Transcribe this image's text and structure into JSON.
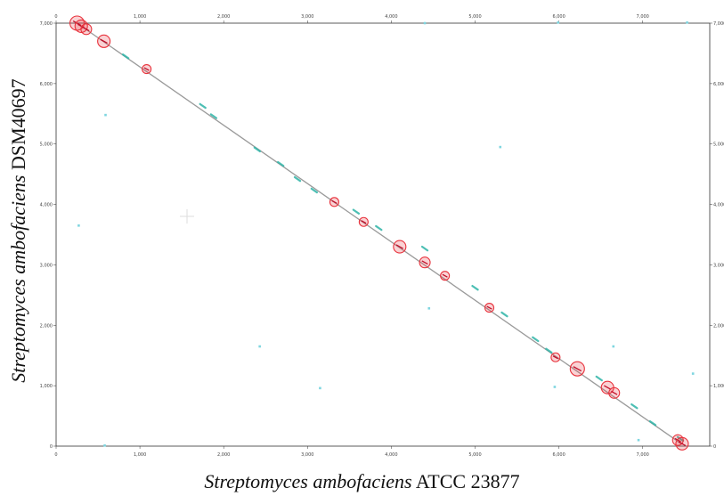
{
  "chart_data": {
    "type": "scatter",
    "xlabel": {
      "species": "Streptomyces ambofaciens",
      "strain": "ATCC 23877"
    },
    "ylabel": {
      "species": "Streptomyces ambofaciens",
      "strain": "DSM40697"
    },
    "xlim": [
      0,
      7800
    ],
    "ylim": [
      0,
      7000
    ],
    "x_ticks": [
      "0",
      "1,000",
      "2,000",
      "3,000",
      "4,000",
      "5,000",
      "6,000",
      "7,000"
    ],
    "y_ticks": [
      "0",
      "1,000",
      "2,000",
      "3,000",
      "4,000",
      "5,000",
      "6,000",
      "7,000"
    ],
    "grid": false,
    "diagonal": {
      "x": [
        250,
        7470
      ],
      "y": [
        7000,
        30
      ]
    },
    "series": [
      {
        "kind": "match_segments",
        "color": "#2fb5a8",
        "points": [
          [
            830,
            6450
          ],
          [
            1750,
            5630
          ],
          [
            1880,
            5460
          ],
          [
            2400,
            4910
          ],
          [
            2680,
            4670
          ],
          [
            2880,
            4420
          ],
          [
            3080,
            4230
          ],
          [
            3580,
            3880
          ],
          [
            3850,
            3610
          ],
          [
            4400,
            3270
          ],
          [
            5000,
            2620
          ],
          [
            5350,
            2180
          ],
          [
            5720,
            1770
          ],
          [
            5880,
            1580
          ],
          [
            6480,
            1120
          ],
          [
            6900,
            660
          ],
          [
            7120,
            380
          ],
          [
            7450,
            120
          ]
        ]
      },
      {
        "kind": "isolated_matches",
        "color": "#7fd6e0",
        "points": [
          [
            590,
            5480
          ],
          [
            270,
            3650
          ],
          [
            2430,
            1650
          ],
          [
            3150,
            960
          ],
          [
            4450,
            2280
          ],
          [
            5300,
            4950
          ],
          [
            4400,
            7000
          ],
          [
            5950,
            980
          ],
          [
            6650,
            1650
          ],
          [
            6950,
            100
          ],
          [
            7600,
            1200
          ],
          [
            7530,
            7010
          ],
          [
            580,
            10
          ],
          [
            5990,
            7010
          ]
        ]
      },
      {
        "kind": "inversions",
        "color": "#e8323c",
        "points": [
          {
            "x": 250,
            "y": 7000,
            "r": 8
          },
          {
            "x": 300,
            "y": 6950,
            "r": 7
          },
          {
            "x": 360,
            "y": 6900,
            "r": 6
          },
          {
            "x": 570,
            "y": 6700,
            "r": 7
          },
          {
            "x": 1080,
            "y": 6240,
            "r": 5
          },
          {
            "x": 3320,
            "y": 4040,
            "r": 5
          },
          {
            "x": 3670,
            "y": 3710,
            "r": 5
          },
          {
            "x": 4100,
            "y": 3300,
            "r": 7
          },
          {
            "x": 4400,
            "y": 3040,
            "r": 6
          },
          {
            "x": 4640,
            "y": 2820,
            "r": 5
          },
          {
            "x": 5170,
            "y": 2290,
            "r": 5
          },
          {
            "x": 5960,
            "y": 1470,
            "r": 5
          },
          {
            "x": 6220,
            "y": 1280,
            "r": 8
          },
          {
            "x": 6580,
            "y": 970,
            "r": 7
          },
          {
            "x": 6660,
            "y": 880,
            "r": 6
          },
          {
            "x": 7420,
            "y": 100,
            "r": 6
          },
          {
            "x": 7470,
            "y": 40,
            "r": 7
          }
        ]
      }
    ]
  }
}
